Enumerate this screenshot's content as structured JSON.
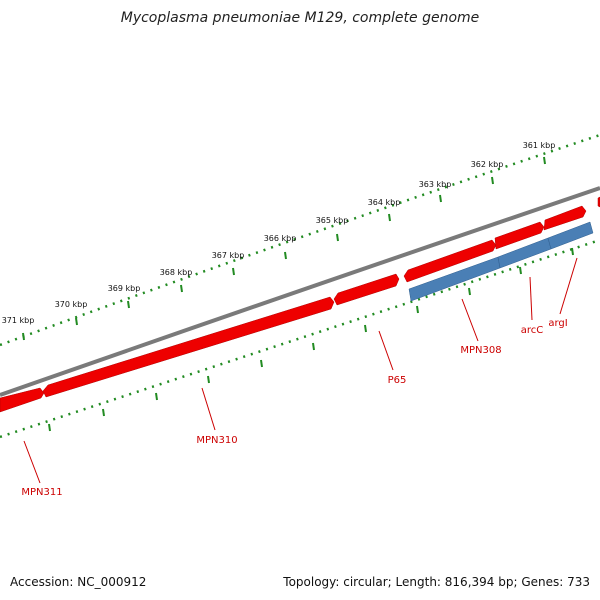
{
  "title": "Mycoplasma pneumoniae M129, complete genome",
  "accession": "Accession: NC_000912",
  "summary": "Topology: circular; Length: 816,394 bp; Genes: 733",
  "colors": {
    "backbone": "#7a7a7a",
    "forward_gene": "#ee0000",
    "reverse_gene": "#4a7fb5",
    "tick": "#228b22",
    "label": "#cc0000"
  },
  "scale_labels": [
    "361 kbp",
    "362 kbp",
    "363 kbp",
    "364 kbp",
    "365 kbp",
    "366 kbp",
    "367 kbp",
    "368 kbp",
    "369 kbp",
    "370 kbp",
    "371 kbp"
  ],
  "genes": [
    {
      "name": "MPN311",
      "strand": "+"
    },
    {
      "name": "MPN310",
      "strand": "+"
    },
    {
      "name": "P65",
      "strand": "+"
    },
    {
      "name": "MPN308",
      "strand": "-"
    },
    {
      "name": "arcC",
      "strand": "-"
    },
    {
      "name": "argI",
      "strand": "-"
    }
  ]
}
